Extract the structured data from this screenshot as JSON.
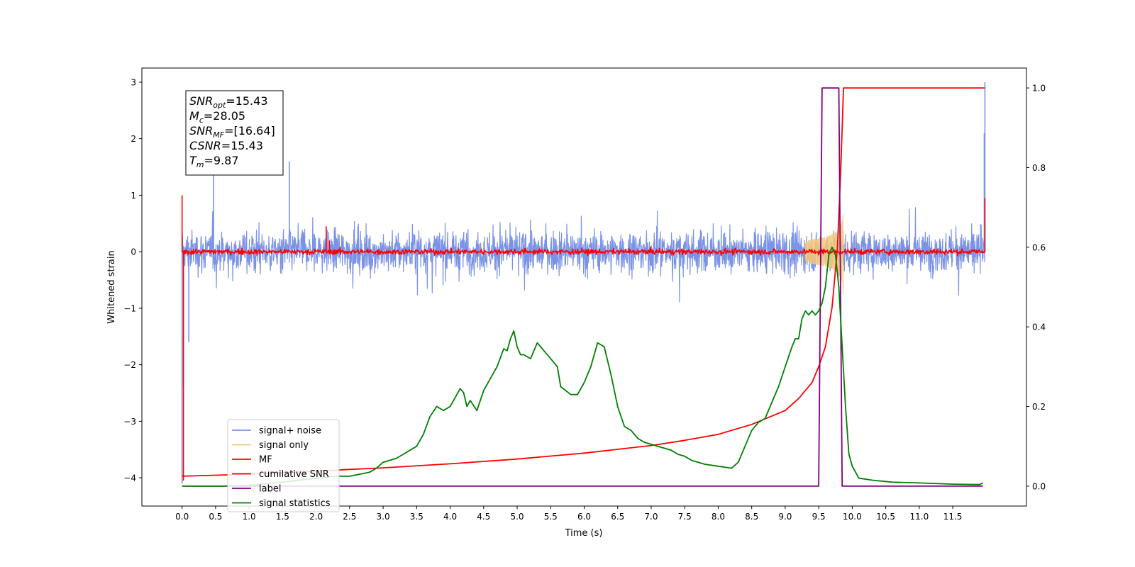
{
  "chart_data": {
    "type": "line",
    "xlabel": "Time (s)",
    "ylabel": "Whitened strain",
    "xlim": [
      -0.6,
      12.6
    ],
    "ylim_left": [
      -4.5,
      3.25
    ],
    "ylim_right": [
      -0.05,
      1.05
    ],
    "x_ticks": [
      "0.0",
      "0.5",
      "1.0",
      "1.5",
      "2.0",
      "2.5",
      "3.0",
      "3.5",
      "4.0",
      "4.5",
      "5.0",
      "5.5",
      "6.0",
      "6.5",
      "7.0",
      "7.5",
      "8.0",
      "8.5",
      "9.0",
      "9.5",
      "10.0",
      "10.5",
      "11.0",
      "11.5"
    ],
    "y_ticks_left": [
      "3",
      "2",
      "1",
      "0",
      "−1",
      "−2",
      "−3",
      "−4"
    ],
    "y_ticks_right": [
      "1.0",
      "0.8",
      "0.6",
      "0.4",
      "0.2",
      "0.0"
    ],
    "annotation": {
      "lines": [
        {
          "sym": "SNR",
          "sub": "opt",
          "value": "=15.43"
        },
        {
          "sym": "M",
          "sub": "c",
          "value": "=28.05"
        },
        {
          "sym": "SNR",
          "sub": "MF",
          "value": "=[16.64]"
        },
        {
          "sym": "CSNR",
          "sub": "",
          "value": "=15.43"
        },
        {
          "sym": "T",
          "sub": "m",
          "value": "=9.87"
        }
      ]
    },
    "legend": {
      "position": "lower-left",
      "entries": [
        {
          "label": "signal+ noise",
          "color": "#7b93e6"
        },
        {
          "label": "signal only",
          "color": "#f5c878"
        },
        {
          "label": "MF",
          "color": "#ff0000"
        },
        {
          "label": "cumilative SNR",
          "color": "#ff0000"
        },
        {
          "label": "label",
          "color": "#800080"
        },
        {
          "label": "signal statistics",
          "color": "#008000"
        }
      ]
    },
    "series": [
      {
        "name": "signal+ noise",
        "axis": "left",
        "color": "#7b93e6",
        "style": "noise",
        "x_range": [
          0.0,
          11.98
        ],
        "amplitude": 0.55,
        "spikes": [
          [
            0.0,
            -4.1
          ],
          [
            0.02,
            -2.4
          ],
          [
            0.1,
            -1.6
          ],
          [
            1.6,
            1.6
          ],
          [
            0.47,
            1.35
          ],
          [
            11.98,
            3.0
          ],
          [
            11.97,
            2.1
          ]
        ]
      },
      {
        "name": "signal only",
        "axis": "left",
        "color": "#f5c878",
        "style": "chirp",
        "x_range": [
          9.3,
          9.9
        ],
        "peak_time": 9.87,
        "peak_amplitude": 0.85
      },
      {
        "name": "MF",
        "axis": "left",
        "color": "#ff0000",
        "style": "mf",
        "x_range": [
          0.0,
          11.98
        ],
        "amplitude": 0.08,
        "spikes": [
          [
            0.0,
            1.0
          ],
          [
            0.02,
            -4.05
          ],
          [
            2.15,
            0.45
          ],
          [
            2.2,
            0.2
          ],
          [
            11.98,
            0.95
          ]
        ]
      },
      {
        "name": "cumilative SNR",
        "axis": "right",
        "color": "#ff0000",
        "style": "line",
        "x": [
          0.0,
          1.0,
          2.0,
          3.0,
          4.0,
          5.0,
          6.0,
          7.0,
          7.5,
          8.0,
          8.5,
          9.0,
          9.2,
          9.4,
          9.5,
          9.6,
          9.7,
          9.78,
          9.83,
          9.87,
          9.9,
          11.98
        ],
        "y": [
          0.025,
          0.03,
          0.038,
          0.046,
          0.056,
          0.068,
          0.083,
          0.102,
          0.115,
          0.13,
          0.155,
          0.19,
          0.22,
          0.26,
          0.3,
          0.35,
          0.45,
          0.6,
          0.8,
          1.0,
          1.0,
          1.0
        ]
      },
      {
        "name": "label",
        "axis": "right",
        "color": "#800080",
        "style": "line",
        "x": [
          0.0,
          9.5,
          9.55,
          9.8,
          9.85,
          11.95
        ],
        "y": [
          0.0,
          0.0,
          1.0,
          1.0,
          0.0,
          0.0
        ]
      },
      {
        "name": "signal statistics",
        "axis": "right",
        "color": "#008000",
        "style": "line",
        "x": [
          0.0,
          0.3,
          0.6,
          1.0,
          1.5,
          2.0,
          2.3,
          2.5,
          2.8,
          2.9,
          3.0,
          3.2,
          3.3,
          3.5,
          3.6,
          3.7,
          3.8,
          3.9,
          4.0,
          4.1,
          4.15,
          4.2,
          4.25,
          4.3,
          4.4,
          4.5,
          4.6,
          4.7,
          4.8,
          4.85,
          4.9,
          4.95,
          5.0,
          5.05,
          5.1,
          5.2,
          5.3,
          5.4,
          5.5,
          5.6,
          5.65,
          5.8,
          5.9,
          6.0,
          6.1,
          6.2,
          6.25,
          6.3,
          6.4,
          6.5,
          6.6,
          6.7,
          6.8,
          6.9,
          7.0,
          7.1,
          7.2,
          7.3,
          7.4,
          7.5,
          7.6,
          7.7,
          7.8,
          8.0,
          8.2,
          8.3,
          8.4,
          8.5,
          8.6,
          8.7,
          8.8,
          8.9,
          9.0,
          9.1,
          9.15,
          9.2,
          9.25,
          9.3,
          9.35,
          9.4,
          9.45,
          9.5,
          9.55,
          9.6,
          9.65,
          9.7,
          9.75,
          9.8,
          9.85,
          9.9,
          9.95,
          10.0,
          10.1,
          10.3,
          10.6,
          11.0,
          11.5,
          11.9,
          11.95
        ],
        "y": [
          0.0,
          0.0,
          0.0,
          0.002,
          0.01,
          0.02,
          0.025,
          0.025,
          0.035,
          0.045,
          0.06,
          0.07,
          0.08,
          0.1,
          0.13,
          0.175,
          0.2,
          0.19,
          0.2,
          0.23,
          0.245,
          0.235,
          0.2,
          0.215,
          0.19,
          0.24,
          0.27,
          0.3,
          0.345,
          0.34,
          0.37,
          0.39,
          0.35,
          0.33,
          0.33,
          0.32,
          0.36,
          0.34,
          0.32,
          0.3,
          0.25,
          0.23,
          0.23,
          0.26,
          0.3,
          0.36,
          0.355,
          0.35,
          0.28,
          0.2,
          0.15,
          0.14,
          0.12,
          0.11,
          0.105,
          0.1,
          0.095,
          0.09,
          0.08,
          0.075,
          0.065,
          0.06,
          0.055,
          0.05,
          0.045,
          0.06,
          0.1,
          0.14,
          0.16,
          0.17,
          0.21,
          0.25,
          0.3,
          0.35,
          0.37,
          0.37,
          0.42,
          0.44,
          0.43,
          0.44,
          0.43,
          0.44,
          0.46,
          0.5,
          0.58,
          0.6,
          0.58,
          0.5,
          0.35,
          0.2,
          0.08,
          0.05,
          0.02,
          0.015,
          0.01,
          0.008,
          0.005,
          0.004,
          0.008
        ]
      }
    ]
  }
}
